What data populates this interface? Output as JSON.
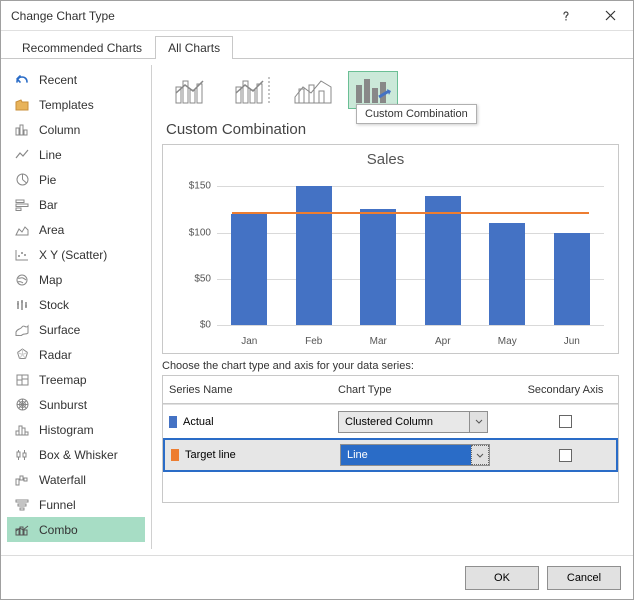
{
  "dialog": {
    "title": "Change Chart Type"
  },
  "tabs": {
    "recommended": "Recommended Charts",
    "all": "All Charts"
  },
  "sidebar": {
    "items": [
      "Recent",
      "Templates",
      "Column",
      "Line",
      "Pie",
      "Bar",
      "Area",
      "X Y (Scatter)",
      "Map",
      "Stock",
      "Surface",
      "Radar",
      "Treemap",
      "Sunburst",
      "Histogram",
      "Box & Whisker",
      "Waterfall",
      "Funnel",
      "Combo"
    ]
  },
  "subtype_tooltip": "Custom Combination",
  "section_title": "Custom Combination",
  "chart": {
    "title": "Sales",
    "y_ticks": [
      "$0",
      "$50",
      "$100",
      "$150"
    ],
    "y_max": 160,
    "categories": [
      "Jan",
      "Feb",
      "Mar",
      "Apr",
      "May",
      "Jun"
    ],
    "bars": [
      120,
      150,
      125,
      140,
      110,
      100
    ],
    "bar_color": "#4472c4",
    "target": 120,
    "target_color": "#ed7d31",
    "grid_color": "#d9d9d9",
    "background": "#ffffff"
  },
  "series_panel": {
    "instruction": "Choose the chart type and axis for your data series:",
    "headers": {
      "name": "Series Name",
      "type": "Chart Type",
      "axis": "Secondary Axis"
    },
    "rows": [
      {
        "swatch": "#4472c4",
        "name": "Actual",
        "type": "Clustered Column",
        "axis": false
      },
      {
        "swatch": "#ed7d31",
        "name": "Target line",
        "type": "Line",
        "axis": false
      }
    ]
  },
  "footer": {
    "ok": "OK",
    "cancel": "Cancel"
  }
}
